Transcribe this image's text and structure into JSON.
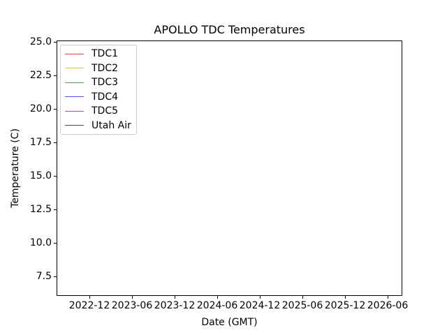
{
  "figure": {
    "title": "APOLLO TDC Temperatures",
    "xlabel": "Date (GMT)",
    "ylabel": "Temperature (C)",
    "background_color": "#ffffff",
    "spine_color": "#000000"
  },
  "axes": {
    "x_tick_labels": [
      "2022-12",
      "2023-06",
      "2023-12",
      "2024-06",
      "2024-12",
      "2025-06",
      "2025-12",
      "2026-06"
    ],
    "y_tick_labels": [
      "25.0",
      "22.5",
      "20.0",
      "17.5",
      "15.0",
      "12.5",
      "10.0",
      "7.5"
    ]
  },
  "legend": {
    "entries": [
      {
        "label": "TDC1",
        "color": "#ee4c4c"
      },
      {
        "label": "TDC2",
        "color": "#ffbe4d"
      },
      {
        "label": "TDC3",
        "color": "#4da64d"
      },
      {
        "label": "TDC4",
        "color": "#5252e8"
      },
      {
        "label": "TDC5",
        "color": "#a64da6"
      },
      {
        "label": "Utah Air",
        "color": "#4d4d4d"
      }
    ]
  },
  "chart_data": {
    "type": "line",
    "title": "APOLLO TDC Temperatures",
    "xlabel": "Date (GMT)",
    "ylabel": "Temperature (C)",
    "x_tick_labels": [
      "2022-12",
      "2023-06",
      "2023-12",
      "2024-06",
      "2024-12",
      "2025-06",
      "2025-12",
      "2026-06"
    ],
    "y_ticks": [
      7.5,
      10.0,
      12.5,
      15.0,
      17.5,
      20.0,
      22.5,
      25.0
    ],
    "ylim": [
      6.0,
      25.1
    ],
    "grid": false,
    "legend_position": "upper left",
    "series": [
      {
        "name": "TDC1",
        "color": "#ee4c4c",
        "values": []
      },
      {
        "name": "TDC2",
        "color": "#ffbe4d",
        "values": []
      },
      {
        "name": "TDC3",
        "color": "#4da64d",
        "values": []
      },
      {
        "name": "TDC4",
        "color": "#5252e8",
        "values": []
      },
      {
        "name": "TDC5",
        "color": "#a64da6",
        "values": []
      },
      {
        "name": "Utah Air",
        "color": "#4d4d4d",
        "values": []
      }
    ],
    "note_visible_data": "no data lines visible inside plot area"
  }
}
